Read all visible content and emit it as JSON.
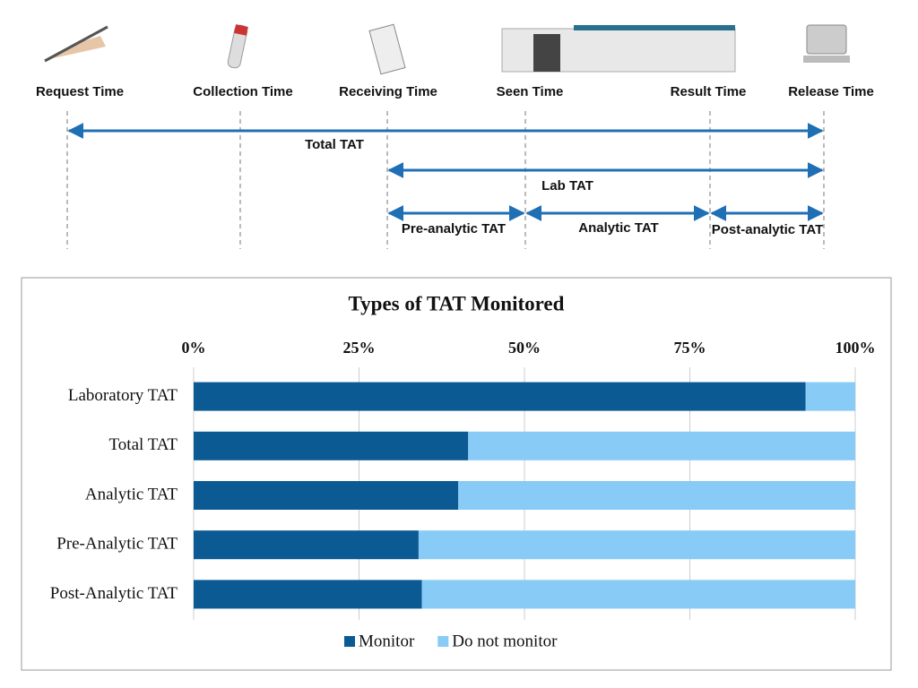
{
  "diagram": {
    "time_points": [
      "Request Time",
      "Collection Time",
      "Receiving Time",
      "Seen Time",
      "Result Time",
      "Release Time"
    ],
    "spans": [
      "Total TAT",
      "Lab TAT",
      "Pre-analytic TAT",
      "Analytic TAT",
      "Post-analytic TAT"
    ]
  },
  "chart_data": {
    "type": "stacked_bar_horizontal",
    "title": "Types of TAT Monitored",
    "categories": [
      "Laboratory TAT",
      "Total TAT",
      "Analytic TAT",
      "Pre-Analytic TAT",
      "Post-Analytic TAT"
    ],
    "series": [
      {
        "name": "Monitor",
        "color": "#0b5a93",
        "values": [
          92.5,
          41.5,
          40,
          34,
          34.5
        ]
      },
      {
        "name": "Do not monitor",
        "color": "#87cbf6",
        "values": [
          7.5,
          58.5,
          60,
          66,
          65.5
        ]
      }
    ],
    "xlim": [
      0,
      100
    ],
    "xticks": [
      {
        "value": 0,
        "label": "0%"
      },
      {
        "value": 25,
        "label": "25%"
      },
      {
        "value": 50,
        "label": "50%"
      },
      {
        "value": 75,
        "label": "75%"
      },
      {
        "value": 100,
        "label": "100%"
      }
    ],
    "grid": true,
    "legend": "bottom"
  }
}
